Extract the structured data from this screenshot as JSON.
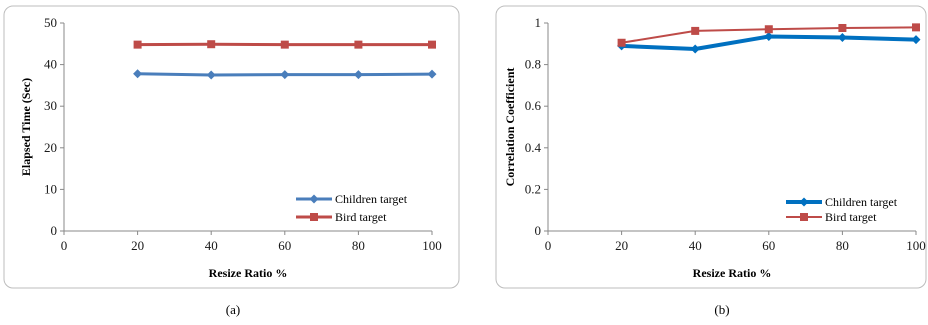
{
  "chart_data": [
    {
      "type": "line",
      "caption": "(a)",
      "x": [
        20,
        40,
        60,
        80,
        100
      ],
      "xticks": [
        0,
        20,
        40,
        60,
        80,
        100
      ],
      "xlabel": "Resize Ratio %",
      "ylabel": "Elapsed Time (Sec)",
      "ylim": [
        0,
        50
      ],
      "yticks": [
        0,
        10,
        20,
        30,
        40,
        50
      ],
      "ytick_labels": [
        "0",
        "10",
        "20",
        "30",
        "40",
        "50"
      ],
      "legend_position": "bottom-right",
      "series": [
        {
          "name": "Children target",
          "values": [
            37.8,
            37.5,
            37.6,
            37.6,
            37.7
          ],
          "color": "#4a7ebb",
          "marker": "diamond",
          "stroke_width": 3
        },
        {
          "name": "Bird target",
          "values": [
            44.8,
            44.9,
            44.8,
            44.8,
            44.8
          ],
          "color": "#be4b48",
          "marker": "square",
          "stroke_width": 3
        }
      ]
    },
    {
      "type": "line",
      "caption": "(b)",
      "x": [
        20,
        40,
        60,
        80,
        100
      ],
      "xticks": [
        0,
        20,
        40,
        60,
        80,
        100
      ],
      "xlabel": "Resize Ratio %",
      "ylabel": "Correlation Coefficient",
      "ylim": [
        0,
        1
      ],
      "yticks": [
        0,
        0.2,
        0.4,
        0.6,
        0.8,
        1
      ],
      "ytick_labels": [
        "0",
        "0.2",
        "0.4",
        "0.6",
        "0.8",
        "1"
      ],
      "legend_position": "bottom-right",
      "series": [
        {
          "name": "Children target",
          "values": [
            0.89,
            0.875,
            0.935,
            0.93,
            0.92
          ],
          "color": "#0070c0",
          "marker": "diamond",
          "stroke_width": 4
        },
        {
          "name": "Bird target",
          "values": [
            0.905,
            0.962,
            0.97,
            0.976,
            0.979
          ],
          "color": "#be4b48",
          "marker": "square",
          "stroke_width": 2
        }
      ]
    }
  ]
}
